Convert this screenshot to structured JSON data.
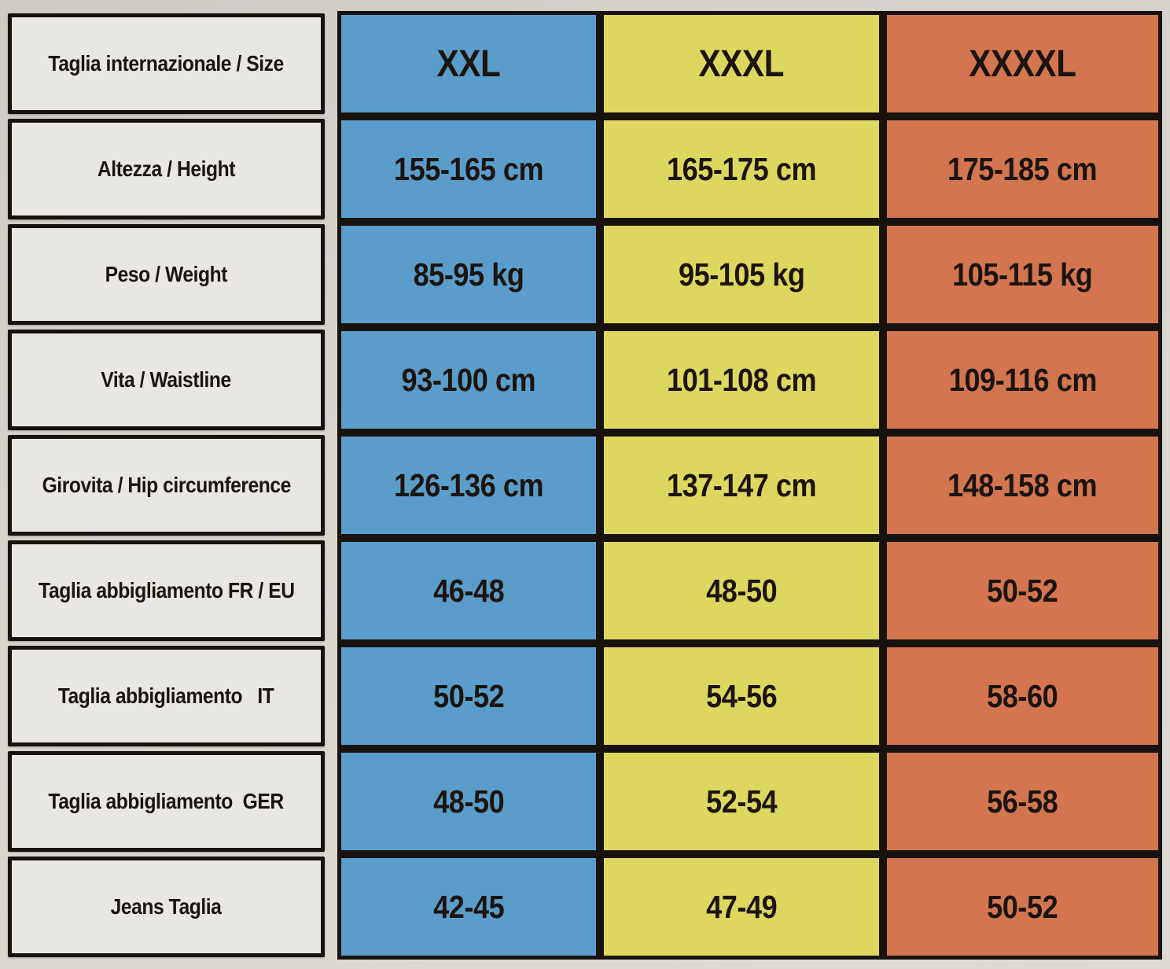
{
  "page": {
    "background": "#d7d4ce",
    "grid_line_color": "#17120e",
    "text_color": "#1b1410",
    "label_cell_background": "#e9e7e1"
  },
  "size_chart": {
    "column_colors": [
      "#5b9dca",
      "#ded75f",
      "#d3764f"
    ],
    "header": {
      "label": "Taglia internazionale / Size",
      "sizes": [
        "XXL",
        "XXXL",
        "XXXXL"
      ]
    },
    "rows": [
      {
        "label": "Altezza / Height",
        "values": [
          "155-165 cm",
          "165-175 cm",
          "175-185 cm"
        ]
      },
      {
        "label": "Peso / Weight",
        "values": [
          "85-95 kg",
          "95-105 kg",
          "105-115 kg"
        ]
      },
      {
        "label": "Vita / Waistline",
        "values": [
          "93-100 cm",
          "101-108 cm",
          "109-116 cm"
        ]
      },
      {
        "label": "Girovita / Hip circumference",
        "values": [
          "126-136 cm",
          "137-147 cm",
          "148-158 cm"
        ]
      },
      {
        "label": "Taglia abbigliamento FR / EU",
        "values": [
          "46-48",
          "48-50",
          "50-52"
        ]
      },
      {
        "label": "Taglia abbigliamento   IT",
        "values": [
          "50-52",
          "54-56",
          "58-60"
        ]
      },
      {
        "label": "Taglia abbigliamento  GER",
        "values": [
          "48-50",
          "52-54",
          "56-58"
        ]
      },
      {
        "label": "Jeans Taglia",
        "values": [
          "42-45",
          "47-49",
          "50-52"
        ]
      }
    ]
  }
}
